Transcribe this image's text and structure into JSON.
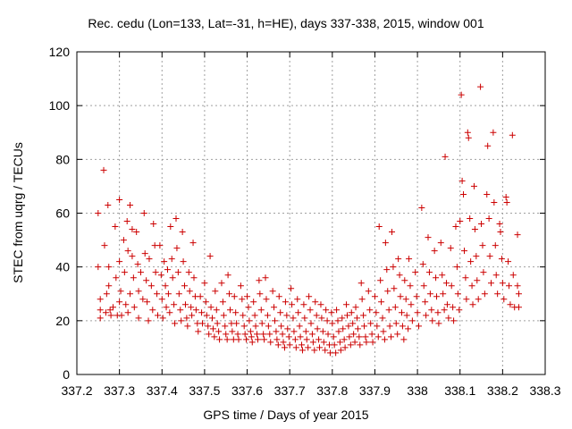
{
  "chart_data": {
    "type": "scatter",
    "title": "Rec. cedu (Lon=133, Lat=-31, h=HE), days 337-338, 2015, window 001",
    "xlabel": "GPS time / Days of year 2015",
    "ylabel": "STEC from uqrg / TECUs",
    "xlim": [
      337.2,
      338.3
    ],
    "ylim": [
      0,
      120
    ],
    "xticks": [
      "337.2",
      "337.3",
      "337.4",
      "337.5",
      "337.6",
      "337.7",
      "337.8",
      "337.9",
      "338",
      "338.1",
      "338.2",
      "338.3"
    ],
    "yticks": [
      "0",
      "20",
      "40",
      "60",
      "80",
      "100",
      "120"
    ],
    "grid": true,
    "marker": "+",
    "color": "#cc0000",
    "points": [
      [
        337.25,
        60
      ],
      [
        337.25,
        40
      ],
      [
        337.255,
        28
      ],
      [
        337.255,
        24
      ],
      [
        337.255,
        21
      ],
      [
        337.263,
        76
      ],
      [
        337.265,
        48
      ],
      [
        337.268,
        23
      ],
      [
        337.27,
        30
      ],
      [
        337.273,
        63
      ],
      [
        337.275,
        40
      ],
      [
        337.275,
        33
      ],
      [
        337.278,
        24
      ],
      [
        337.28,
        22
      ],
      [
        337.285,
        25
      ],
      [
        337.29,
        55
      ],
      [
        337.292,
        36
      ],
      [
        337.295,
        22
      ],
      [
        337.3,
        65
      ],
      [
        337.3,
        42
      ],
      [
        337.3,
        27
      ],
      [
        337.303,
        31
      ],
      [
        337.305,
        22
      ],
      [
        337.31,
        50
      ],
      [
        337.312,
        38
      ],
      [
        337.315,
        26
      ],
      [
        337.318,
        57
      ],
      [
        337.32,
        46
      ],
      [
        337.32,
        23
      ],
      [
        337.325,
        63
      ],
      [
        337.325,
        30
      ],
      [
        337.33,
        54
      ],
      [
        337.33,
        44
      ],
      [
        337.333,
        36
      ],
      [
        337.335,
        25
      ],
      [
        337.34,
        53
      ],
      [
        337.343,
        41
      ],
      [
        337.345,
        31
      ],
      [
        337.345,
        21
      ],
      [
        337.35,
        38
      ],
      [
        337.355,
        28
      ],
      [
        337.358,
        60
      ],
      [
        337.36,
        45
      ],
      [
        337.363,
        35
      ],
      [
        337.365,
        27
      ],
      [
        337.368,
        20
      ],
      [
        337.37,
        43
      ],
      [
        337.375,
        33
      ],
      [
        337.378,
        24
      ],
      [
        337.38,
        56
      ],
      [
        337.383,
        48
      ],
      [
        337.385,
        38
      ],
      [
        337.388,
        30
      ],
      [
        337.39,
        22
      ],
      [
        337.395,
        48
      ],
      [
        337.398,
        37
      ],
      [
        337.4,
        28
      ],
      [
        337.402,
        21
      ],
      [
        337.405,
        42
      ],
      [
        337.408,
        33
      ],
      [
        337.41,
        25
      ],
      [
        337.413,
        39
      ],
      [
        337.415,
        30
      ],
      [
        337.418,
        23
      ],
      [
        337.42,
        55
      ],
      [
        337.423,
        43
      ],
      [
        337.425,
        36
      ],
      [
        337.428,
        26
      ],
      [
        337.43,
        19
      ],
      [
        337.433,
        58
      ],
      [
        337.435,
        47
      ],
      [
        337.438,
        38
      ],
      [
        337.44,
        30
      ],
      [
        337.443,
        24
      ],
      [
        337.445,
        20
      ],
      [
        337.448,
        53
      ],
      [
        337.45,
        42
      ],
      [
        337.453,
        33
      ],
      [
        337.455,
        26
      ],
      [
        337.458,
        21
      ],
      [
        337.46,
        18
      ],
      [
        337.463,
        38
      ],
      [
        337.465,
        31
      ],
      [
        337.468,
        25
      ],
      [
        337.47,
        22
      ],
      [
        337.473,
        49
      ],
      [
        337.475,
        36
      ],
      [
        337.478,
        29
      ],
      [
        337.48,
        24
      ],
      [
        337.483,
        19
      ],
      [
        337.485,
        16
      ],
      [
        337.49,
        29
      ],
      [
        337.493,
        23
      ],
      [
        337.495,
        19
      ],
      [
        337.5,
        34
      ],
      [
        337.503,
        27
      ],
      [
        337.505,
        22
      ],
      [
        337.508,
        18
      ],
      [
        337.51,
        15
      ],
      [
        337.513,
        44
      ],
      [
        337.515,
        25
      ],
      [
        337.518,
        21
      ],
      [
        337.52,
        17
      ],
      [
        337.523,
        14
      ],
      [
        337.525,
        31
      ],
      [
        337.528,
        24
      ],
      [
        337.53,
        19
      ],
      [
        337.533,
        16
      ],
      [
        337.535,
        13
      ],
      [
        337.54,
        34
      ],
      [
        337.543,
        27
      ],
      [
        337.545,
        22
      ],
      [
        337.548,
        18
      ],
      [
        337.55,
        15
      ],
      [
        337.553,
        13
      ],
      [
        337.555,
        37
      ],
      [
        337.558,
        30
      ],
      [
        337.56,
        24
      ],
      [
        337.563,
        19
      ],
      [
        337.565,
        16
      ],
      [
        337.568,
        13
      ],
      [
        337.57,
        29
      ],
      [
        337.573,
        23
      ],
      [
        337.575,
        19
      ],
      [
        337.578,
        15
      ],
      [
        337.58,
        13
      ],
      [
        337.585,
        33
      ],
      [
        337.588,
        28
      ],
      [
        337.59,
        22
      ],
      [
        337.593,
        18
      ],
      [
        337.595,
        15
      ],
      [
        337.598,
        13
      ],
      [
        337.6,
        29
      ],
      [
        337.603,
        25
      ],
      [
        337.605,
        20
      ],
      [
        337.608,
        16
      ],
      [
        337.61,
        14
      ],
      [
        337.612,
        12
      ],
      [
        337.615,
        27
      ],
      [
        337.618,
        22
      ],
      [
        337.62,
        18
      ],
      [
        337.623,
        15
      ],
      [
        337.625,
        13
      ],
      [
        337.628,
        35
      ],
      [
        337.63,
        30
      ],
      [
        337.633,
        24
      ],
      [
        337.635,
        19
      ],
      [
        337.638,
        15
      ],
      [
        337.64,
        13
      ],
      [
        337.643,
        36
      ],
      [
        337.645,
        28
      ],
      [
        337.648,
        22
      ],
      [
        337.65,
        18
      ],
      [
        337.653,
        15
      ],
      [
        337.655,
        12
      ],
      [
        337.66,
        31
      ],
      [
        337.663,
        25
      ],
      [
        337.665,
        20
      ],
      [
        337.668,
        16
      ],
      [
        337.67,
        13
      ],
      [
        337.673,
        11
      ],
      [
        337.675,
        29
      ],
      [
        337.678,
        23
      ],
      [
        337.68,
        18
      ],
      [
        337.683,
        15
      ],
      [
        337.685,
        12
      ],
      [
        337.688,
        10
      ],
      [
        337.69,
        27
      ],
      [
        337.693,
        22
      ],
      [
        337.695,
        17
      ],
      [
        337.698,
        14
      ],
      [
        337.7,
        11
      ],
      [
        337.703,
        32
      ],
      [
        337.705,
        26
      ],
      [
        337.708,
        21
      ],
      [
        337.71,
        16
      ],
      [
        337.713,
        13
      ],
      [
        337.715,
        10
      ],
      [
        337.718,
        28
      ],
      [
        337.72,
        23
      ],
      [
        337.723,
        18
      ],
      [
        337.725,
        14
      ],
      [
        337.728,
        11
      ],
      [
        337.73,
        9
      ],
      [
        337.733,
        26
      ],
      [
        337.735,
        21
      ],
      [
        337.738,
        16
      ],
      [
        337.74,
        13
      ],
      [
        337.743,
        10
      ],
      [
        337.745,
        29
      ],
      [
        337.748,
        24
      ],
      [
        337.75,
        19
      ],
      [
        337.753,
        15
      ],
      [
        337.755,
        12
      ],
      [
        337.758,
        9
      ],
      [
        337.76,
        27
      ],
      [
        337.763,
        22
      ],
      [
        337.765,
        17
      ],
      [
        337.768,
        13
      ],
      [
        337.77,
        10
      ],
      [
        337.773,
        26
      ],
      [
        337.775,
        21
      ],
      [
        337.778,
        16
      ],
      [
        337.78,
        12
      ],
      [
        337.783,
        9
      ],
      [
        337.785,
        24
      ],
      [
        337.788,
        20
      ],
      [
        337.79,
        15
      ],
      [
        337.793,
        11
      ],
      [
        337.795,
        8
      ],
      [
        337.798,
        23
      ],
      [
        337.8,
        19
      ],
      [
        337.803,
        14
      ],
      [
        337.805,
        11
      ],
      [
        337.808,
        8
      ],
      [
        337.81,
        24
      ],
      [
        337.813,
        20
      ],
      [
        337.815,
        16
      ],
      [
        337.818,
        12
      ],
      [
        337.82,
        9
      ],
      [
        337.823,
        21
      ],
      [
        337.825,
        17
      ],
      [
        337.828,
        13
      ],
      [
        337.83,
        10
      ],
      [
        337.833,
        26
      ],
      [
        337.835,
        22
      ],
      [
        337.838,
        18
      ],
      [
        337.84,
        14
      ],
      [
        337.843,
        11
      ],
      [
        337.845,
        23
      ],
      [
        337.848,
        19
      ],
      [
        337.85,
        15
      ],
      [
        337.853,
        12
      ],
      [
        337.855,
        25
      ],
      [
        337.858,
        21
      ],
      [
        337.86,
        17
      ],
      [
        337.863,
        14
      ],
      [
        337.865,
        11
      ],
      [
        337.868,
        34
      ],
      [
        337.87,
        28
      ],
      [
        337.873,
        22
      ],
      [
        337.875,
        18
      ],
      [
        337.878,
        14
      ],
      [
        337.88,
        12
      ],
      [
        337.885,
        31
      ],
      [
        337.888,
        24
      ],
      [
        337.89,
        19
      ],
      [
        337.893,
        15
      ],
      [
        337.895,
        12
      ],
      [
        337.9,
        29
      ],
      [
        337.903,
        23
      ],
      [
        337.905,
        18
      ],
      [
        337.908,
        14
      ],
      [
        337.91,
        55
      ],
      [
        337.913,
        35
      ],
      [
        337.915,
        27
      ],
      [
        337.918,
        21
      ],
      [
        337.92,
        16
      ],
      [
        337.923,
        13
      ],
      [
        337.925,
        49
      ],
      [
        337.928,
        39
      ],
      [
        337.93,
        31
      ],
      [
        337.933,
        24
      ],
      [
        337.935,
        18
      ],
      [
        337.938,
        14
      ],
      [
        337.94,
        53
      ],
      [
        337.943,
        40
      ],
      [
        337.945,
        32
      ],
      [
        337.948,
        25
      ],
      [
        337.95,
        19
      ],
      [
        337.953,
        15
      ],
      [
        337.955,
        43
      ],
      [
        337.958,
        37
      ],
      [
        337.96,
        29
      ],
      [
        337.963,
        23
      ],
      [
        337.965,
        18
      ],
      [
        337.968,
        13
      ],
      [
        337.97,
        35
      ],
      [
        337.973,
        28
      ],
      [
        337.975,
        22
      ],
      [
        337.978,
        17
      ],
      [
        337.98,
        43
      ],
      [
        337.983,
        33
      ],
      [
        337.985,
        26
      ],
      [
        337.988,
        20
      ],
      [
        337.995,
        38
      ],
      [
        337.998,
        29
      ],
      [
        338.0,
        23
      ],
      [
        338.003,
        18
      ],
      [
        338.01,
        62
      ],
      [
        338.013,
        41
      ],
      [
        338.015,
        33
      ],
      [
        338.018,
        27
      ],
      [
        338.02,
        22
      ],
      [
        338.025,
        51
      ],
      [
        338.028,
        38
      ],
      [
        338.03,
        30
      ],
      [
        338.033,
        24
      ],
      [
        338.035,
        20
      ],
      [
        338.04,
        46
      ],
      [
        338.043,
        36
      ],
      [
        338.045,
        29
      ],
      [
        338.048,
        23
      ],
      [
        338.05,
        19
      ],
      [
        338.055,
        49
      ],
      [
        338.058,
        37
      ],
      [
        338.06,
        30
      ],
      [
        338.063,
        24
      ],
      [
        338.065,
        81
      ],
      [
        338.068,
        34
      ],
      [
        338.07,
        26
      ],
      [
        338.073,
        21
      ],
      [
        338.078,
        47
      ],
      [
        338.08,
        33
      ],
      [
        338.083,
        25
      ],
      [
        338.085,
        20
      ],
      [
        338.09,
        55
      ],
      [
        338.093,
        40
      ],
      [
        338.095,
        30
      ],
      [
        338.098,
        24
      ],
      [
        338.1,
        57
      ],
      [
        338.103,
        104
      ],
      [
        338.105,
        72
      ],
      [
        338.108,
        67
      ],
      [
        338.11,
        46
      ],
      [
        338.113,
        36
      ],
      [
        338.115,
        28
      ],
      [
        338.118,
        90
      ],
      [
        338.12,
        88
      ],
      [
        338.123,
        58
      ],
      [
        338.125,
        42
      ],
      [
        338.128,
        33
      ],
      [
        338.13,
        26
      ],
      [
        338.133,
        70
      ],
      [
        338.135,
        54
      ],
      [
        338.138,
        44
      ],
      [
        338.14,
        35
      ],
      [
        338.143,
        28
      ],
      [
        338.148,
        107
      ],
      [
        338.15,
        56
      ],
      [
        338.153,
        48
      ],
      [
        338.155,
        38
      ],
      [
        338.158,
        30
      ],
      [
        338.163,
        67
      ],
      [
        338.165,
        85
      ],
      [
        338.168,
        58
      ],
      [
        338.17,
        44
      ],
      [
        338.173,
        34
      ],
      [
        338.178,
        90
      ],
      [
        338.18,
        64
      ],
      [
        338.183,
        48
      ],
      [
        338.185,
        37
      ],
      [
        338.188,
        30
      ],
      [
        338.193,
        56
      ],
      [
        338.195,
        53
      ],
      [
        338.198,
        43
      ],
      [
        338.2,
        34
      ],
      [
        338.203,
        28
      ],
      [
        338.208,
        66
      ],
      [
        338.21,
        64
      ],
      [
        338.213,
        42
      ],
      [
        338.215,
        33
      ],
      [
        338.218,
        26
      ],
      [
        338.223,
        89
      ],
      [
        338.225,
        37
      ],
      [
        338.228,
        25
      ],
      [
        338.235,
        52
      ],
      [
        338.235,
        33
      ],
      [
        338.238,
        30
      ],
      [
        338.238,
        25
      ]
    ]
  }
}
